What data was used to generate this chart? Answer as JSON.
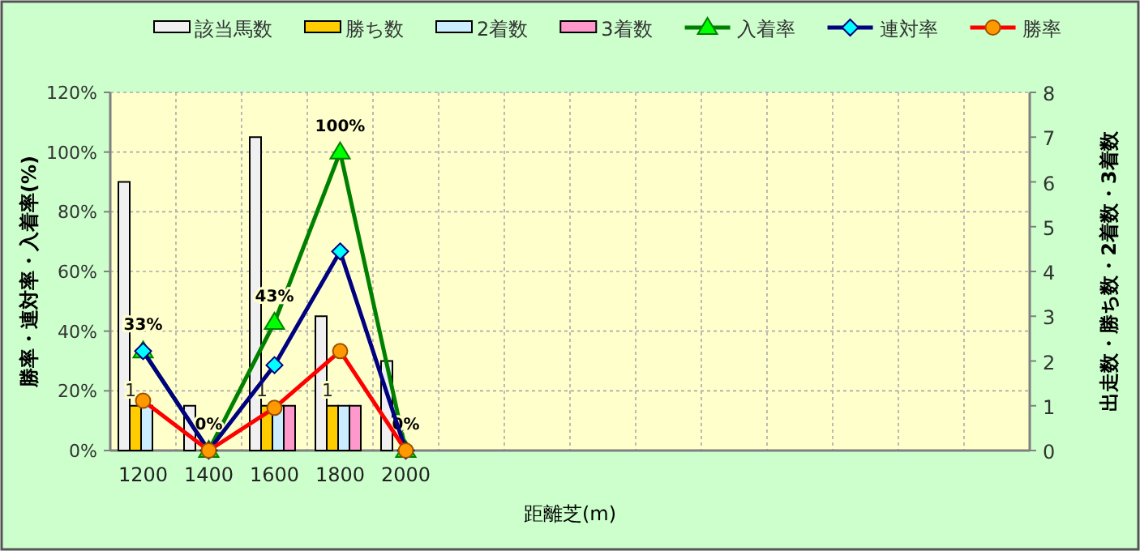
{
  "chart_data": {
    "type": "bar",
    "xlabel": "距離芝(m)",
    "ylabel": "勝率・連対率・入着率(%)",
    "y2label": "出走数・勝ち数・2着数・3着数",
    "categories": [
      "1200",
      "1400",
      "1600",
      "1800",
      "2000",
      null,
      null,
      null,
      null,
      null,
      null,
      null,
      null,
      null
    ],
    "series": [
      {
        "name": "該当馬数",
        "axis": "y2",
        "color": "#f0f0f0",
        "values": [
          6,
          1,
          7,
          3,
          2,
          null,
          null,
          null,
          null,
          null,
          null,
          null,
          null,
          null
        ]
      },
      {
        "name": "勝ち数",
        "axis": "y2",
        "color": "#ffcc00",
        "values": [
          1,
          0,
          1,
          1,
          0,
          null,
          null,
          null,
          null,
          null,
          null,
          null,
          null,
          null
        ],
        "value_labels": [
          "1",
          null,
          "1",
          "1",
          null,
          null,
          null,
          null,
          null,
          null,
          null,
          null,
          null,
          null
        ]
      },
      {
        "name": "2着数",
        "axis": "y2",
        "color": "#ccecff",
        "values": [
          1,
          0,
          1,
          1,
          0,
          null,
          null,
          null,
          null,
          null,
          null,
          null,
          null,
          null
        ]
      },
      {
        "name": "3着数",
        "axis": "y2",
        "color": "#ff99cc",
        "values": [
          0,
          0,
          1,
          1,
          0,
          null,
          null,
          null,
          null,
          null,
          null,
          null,
          null,
          null
        ]
      },
      {
        "name": "入着率",
        "type": "line",
        "marker": "triangle",
        "color": "#008000",
        "values": [
          33.3,
          0,
          42.9,
          100,
          0,
          null,
          null,
          null,
          null,
          null,
          null,
          null,
          null,
          null
        ],
        "value_labels": [
          "33%",
          "0%",
          "43%",
          "100%",
          "0%",
          null,
          null,
          null,
          null,
          null,
          null,
          null,
          null,
          null
        ]
      },
      {
        "name": "連対率",
        "type": "line",
        "marker": "diamond",
        "color": "#000080",
        "values": [
          33.3,
          0,
          28.6,
          66.7,
          0,
          null,
          null,
          null,
          null,
          null,
          null,
          null,
          null,
          null
        ]
      },
      {
        "name": "勝率",
        "type": "line",
        "marker": "circle",
        "color": "#ff0000",
        "values": [
          16.7,
          0,
          14.3,
          33.3,
          0,
          null,
          null,
          null,
          null,
          null,
          null,
          null,
          null,
          null
        ]
      }
    ],
    "ylim": [
      0,
      120
    ],
    "yticks": [
      {
        "value": 0,
        "label": "0%"
      },
      {
        "value": 20,
        "label": "20%"
      },
      {
        "value": 40,
        "label": "40%"
      },
      {
        "value": 60,
        "label": "60%"
      },
      {
        "value": 80,
        "label": "80%"
      },
      {
        "value": 100,
        "label": "100%"
      },
      {
        "value": 120,
        "label": "120%"
      }
    ],
    "y2lim": [
      0,
      8
    ],
    "y2ticks": [
      0,
      1,
      2,
      3,
      4,
      5,
      6,
      7,
      8
    ],
    "grid": true,
    "legend": "top"
  }
}
